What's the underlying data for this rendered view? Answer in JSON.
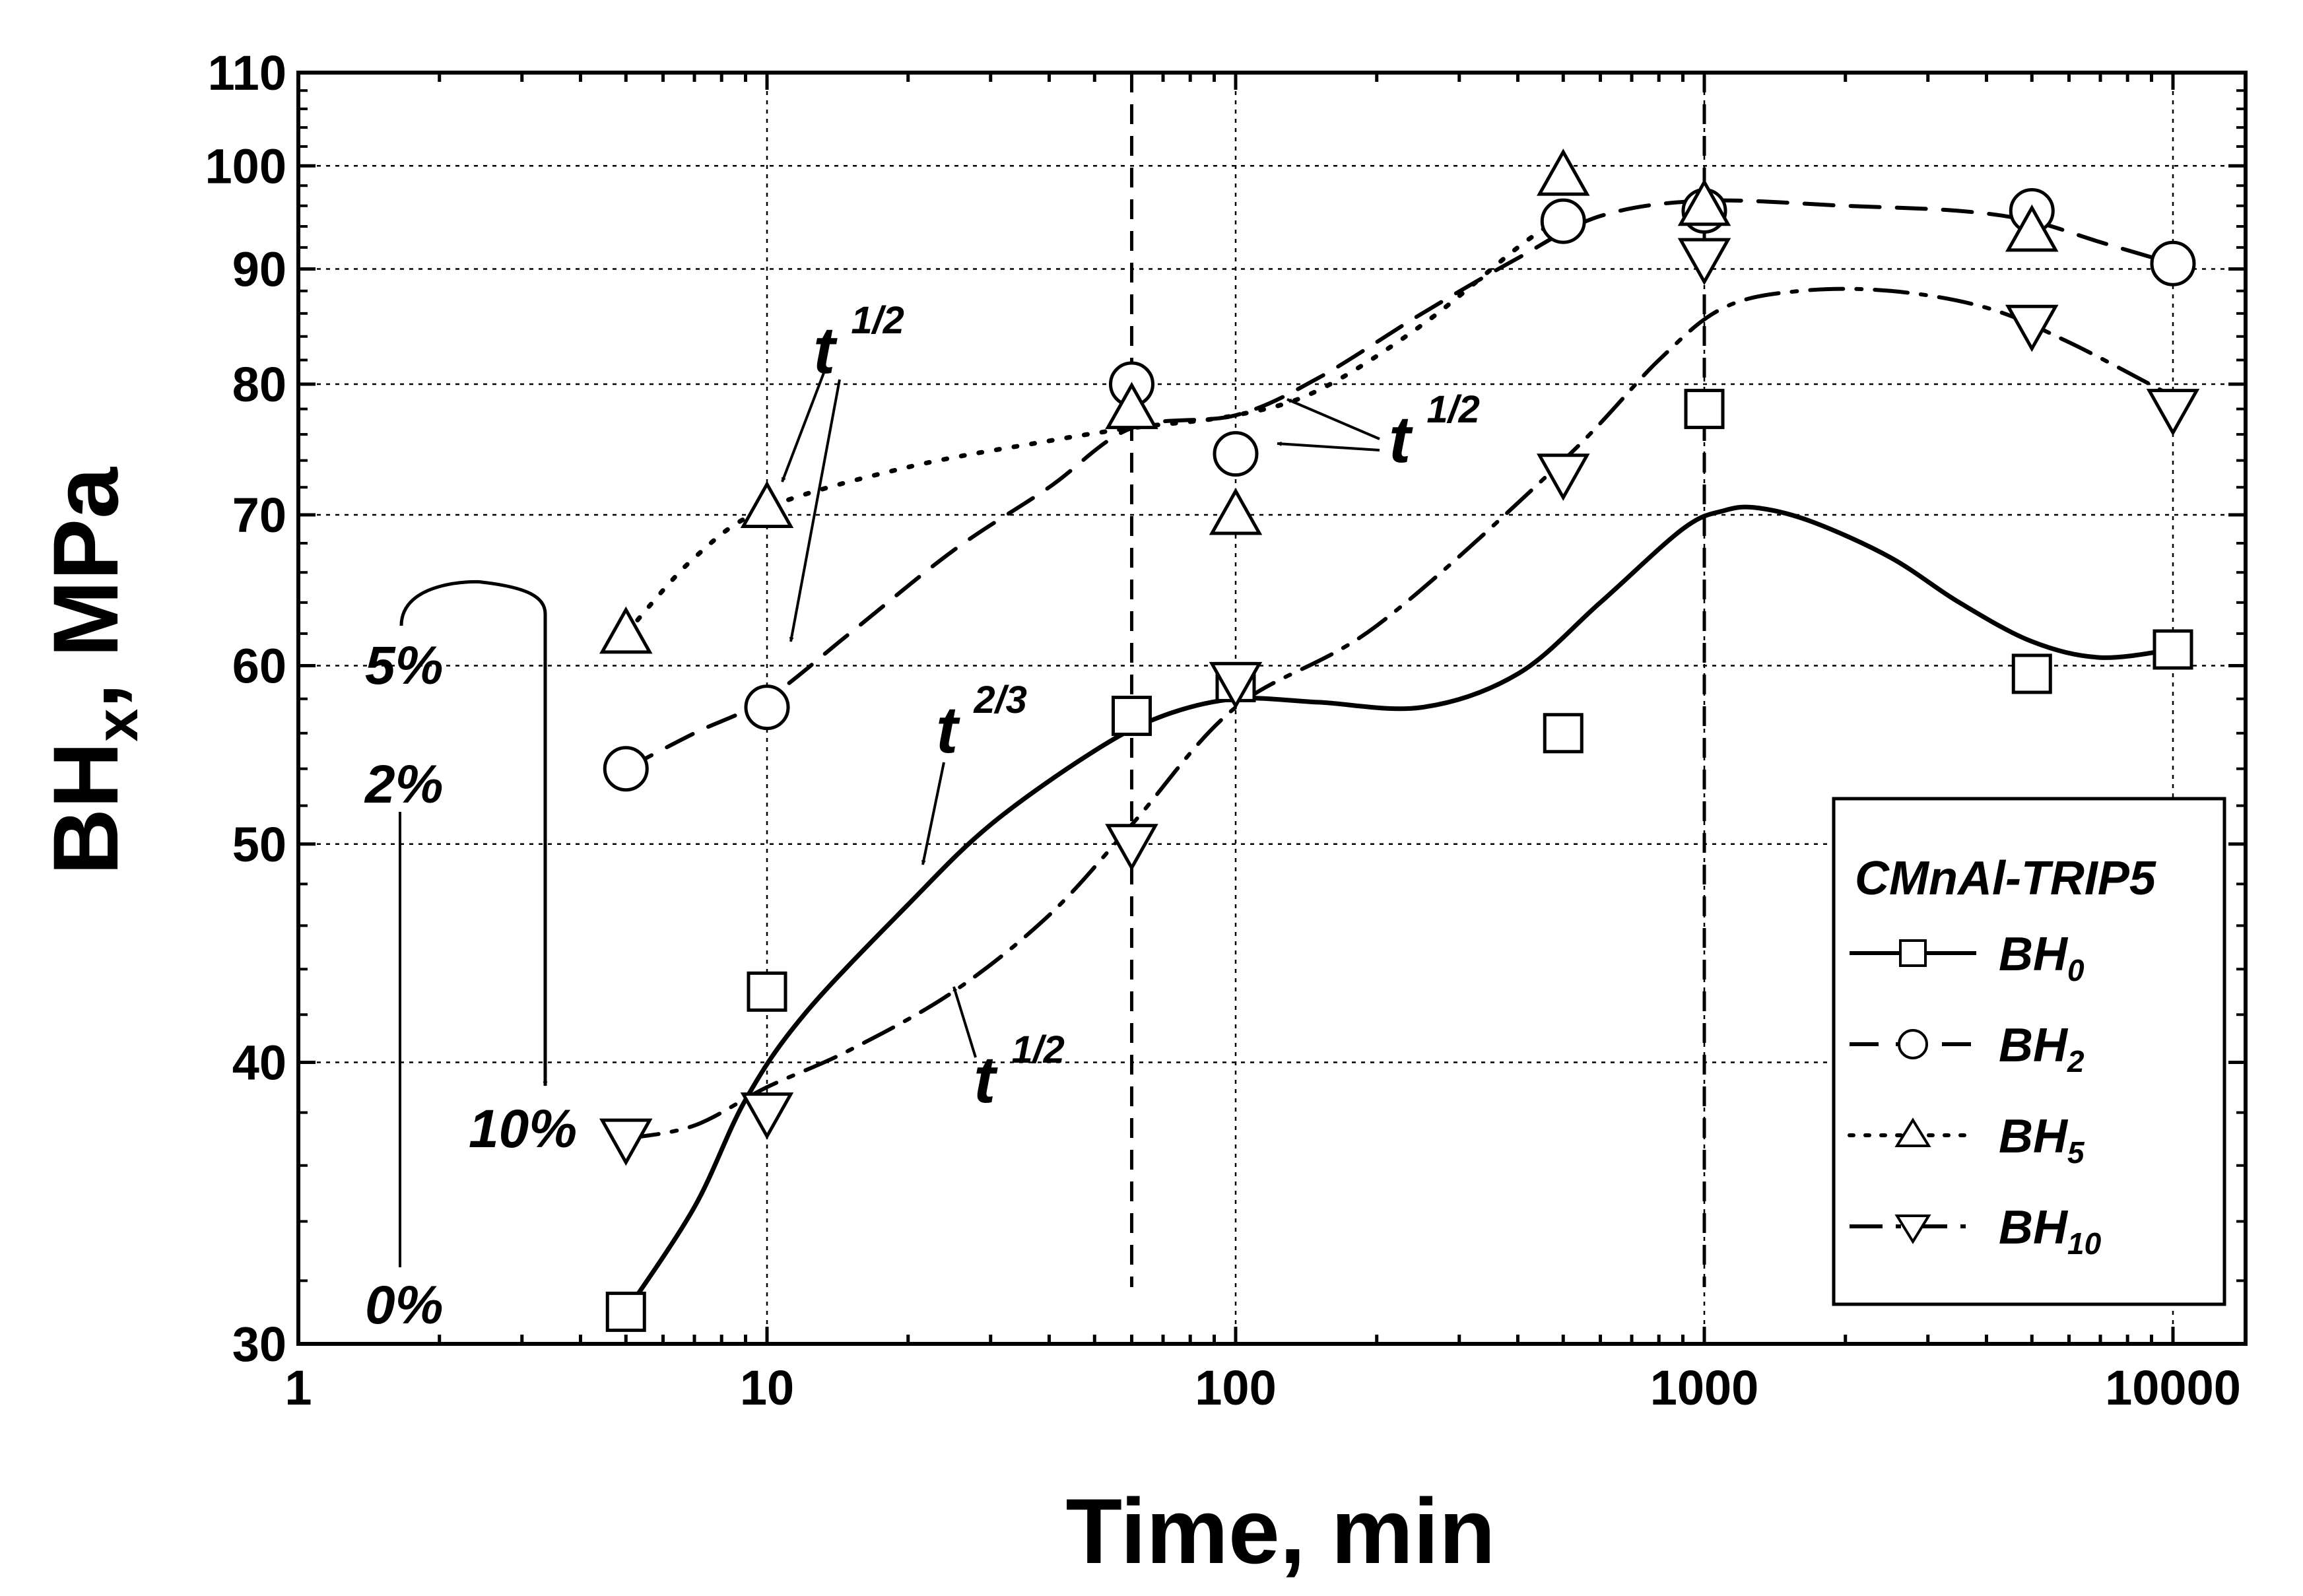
{
  "chart_data": {
    "type": "scatter",
    "title": "",
    "xlabel": "Time, min",
    "ylabel_main": "BH",
    "ylabel_sub": "x",
    "ylabel_tail": ", MPa",
    "x_scale": "log",
    "y_scale": "log",
    "xlim": [
      1,
      14000
    ],
    "ylim": [
      30,
      110
    ],
    "x_ticks": [
      1,
      10,
      100,
      1000,
      10000
    ],
    "x_tick_labels": [
      "1",
      "10",
      "100",
      "1000",
      "10000"
    ],
    "y_ticks": [
      30,
      40,
      50,
      60,
      70,
      80,
      90,
      100,
      110
    ],
    "y_tick_labels": [
      "30",
      "40",
      "50",
      "60",
      "70",
      "80",
      "90",
      "100",
      "110"
    ],
    "grid": true,
    "vertical_markers": [
      60,
      1000
    ],
    "legend": {
      "title": "CMnAl-TRIP5",
      "position": "lower-right"
    },
    "series": [
      {
        "name": "BH",
        "sub": "0",
        "marker": "square",
        "line": "solid",
        "x": [
          5,
          10,
          60,
          100,
          500,
          1000,
          5000,
          10000
        ],
        "y": [
          31,
          43,
          57,
          59,
          56,
          78,
          59.5,
          61
        ],
        "fit_x": [
          5,
          7,
          9,
          12,
          20,
          30,
          50,
          70,
          100,
          150,
          250,
          400,
          600,
          900,
          1100,
          1300,
          1700,
          2500,
          3500,
          5000,
          7000,
          10000
        ],
        "fit_y": [
          31,
          34.5,
          38.5,
          42,
          47,
          51,
          55,
          57,
          58,
          57.8,
          57.5,
          59.5,
          64,
          69,
          70.3,
          70.5,
          69.5,
          67,
          64,
          61.5,
          60.5,
          61
        ]
      },
      {
        "name": "BH",
        "sub": "2",
        "marker": "circle",
        "line": "dashed",
        "x": [
          5,
          10,
          60,
          100,
          500,
          1000,
          5000,
          10000
        ],
        "y": [
          54,
          57.5,
          80,
          74.5,
          94.5,
          95.5,
          95.5,
          90.5
        ],
        "fit_x": [
          5,
          7,
          10,
          15,
          25,
          40,
          60,
          100,
          150,
          250,
          400,
          600,
          1000,
          2000,
          3500,
          5000,
          7000,
          10000
        ],
        "fit_y": [
          54,
          56,
          58,
          62,
          67.5,
          72,
          76.5,
          77.5,
          80.5,
          86,
          91,
          95,
          96.5,
          96,
          95.5,
          94.5,
          92.5,
          90.5
        ]
      },
      {
        "name": "BH",
        "sub": "5",
        "marker": "triangle-up",
        "line": "dotted",
        "x": [
          5,
          10,
          60,
          100,
          500,
          1000,
          5000
        ],
        "y": [
          62,
          70.5,
          78,
          70,
          99,
          96,
          93.5
        ],
        "fit_x": [
          5,
          7,
          10,
          20,
          40,
          60,
          100,
          150,
          250,
          400,
          500
        ],
        "fit_y": [
          62,
          67,
          70.5,
          73.5,
          75.5,
          76.5,
          77.5,
          79.5,
          85,
          92,
          95
        ]
      },
      {
        "name": "BH",
        "sub": "10",
        "marker": "triangle-down",
        "line": "dashdot",
        "x": [
          5,
          10,
          60,
          100,
          500,
          1000,
          5000,
          10000
        ],
        "y": [
          37,
          38,
          50,
          59,
          73,
          91,
          85,
          78
        ],
        "fit_x": [
          5,
          7,
          10,
          15,
          25,
          40,
          60,
          100,
          200,
          500,
          800,
          1100,
          1600,
          2500,
          4000,
          6000,
          10000
        ],
        "fit_y": [
          37,
          37.5,
          39,
          40.5,
          43,
          46.5,
          51,
          57.5,
          62.5,
          74,
          82,
          86.5,
          88,
          88,
          86.5,
          83.5,
          79
        ]
      }
    ],
    "annotations": [
      {
        "base": "t",
        "exp": "1/2",
        "target": "BH5 and BH2 early slope"
      },
      {
        "base": "t",
        "exp": "1/2",
        "target": "BH2/BH5 near 100 min"
      },
      {
        "base": "t",
        "exp": "2/3",
        "target": "BH0 curve"
      },
      {
        "base": "t",
        "exp": "1/2",
        "target": "BH10 curve"
      }
    ],
    "prestrain_labels": [
      "5%",
      "2%",
      "10%",
      "0%"
    ]
  }
}
